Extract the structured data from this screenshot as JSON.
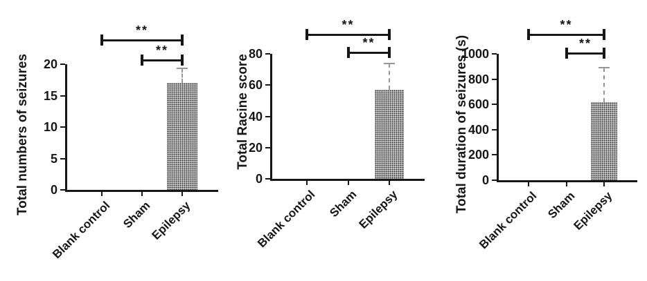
{
  "figure": {
    "description": "Three-panel bar figure comparing seizure measures across groups",
    "background": "#ffffff",
    "ink_color": "#161616",
    "bar_base_color": "#e0e0e0",
    "bar_dot_color": "#2e2e2e",
    "error_bar_color": "#979797"
  },
  "chart_data": [
    {
      "type": "bar",
      "ylabel": "Total numbers of seizures",
      "categories": [
        "Blank control",
        "Sham",
        "Epilepsy"
      ],
      "values": [
        0,
        0,
        17
      ],
      "errors_plus": [
        0,
        0,
        2.3
      ],
      "ylim": [
        0,
        20
      ],
      "yticks": [
        0,
        5,
        10,
        15,
        20
      ],
      "grid": false,
      "significance": [
        {
          "from": "Blank control",
          "to": "Epilepsy",
          "label": "**"
        },
        {
          "from": "Sham",
          "to": "Epilepsy",
          "label": "**"
        }
      ]
    },
    {
      "type": "bar",
      "ylabel": "Total Racine score",
      "categories": [
        "Blank control",
        "Sham",
        "Epilepsy"
      ],
      "values": [
        0,
        0,
        57
      ],
      "errors_plus": [
        0,
        0,
        17
      ],
      "ylim": [
        0,
        80
      ],
      "yticks": [
        0,
        20,
        40,
        60,
        80
      ],
      "grid": false,
      "significance": [
        {
          "from": "Blank control",
          "to": "Epilepsy",
          "label": "**"
        },
        {
          "from": "Sham",
          "to": "Epilepsy",
          "label": "**"
        }
      ]
    },
    {
      "type": "bar",
      "ylabel": "Total duration of seizures (s)",
      "categories": [
        "Blank control",
        "Sham",
        "Epilepsy"
      ],
      "values": [
        0,
        0,
        620
      ],
      "errors_plus": [
        0,
        0,
        270
      ],
      "ylim": [
        0,
        1000
      ],
      "yticks": [
        0,
        200,
        400,
        600,
        800,
        1000
      ],
      "grid": false,
      "significance": [
        {
          "from": "Blank control",
          "to": "Epilepsy",
          "label": "**"
        },
        {
          "from": "Sham",
          "to": "Epilepsy",
          "label": "**"
        }
      ]
    }
  ]
}
